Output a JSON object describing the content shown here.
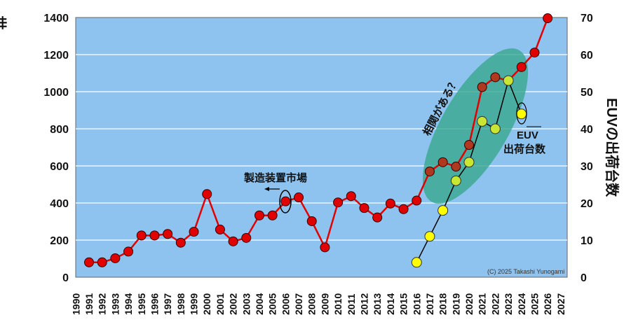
{
  "chart_data": {
    "type": "line",
    "title": "",
    "ylabel": "世界の半導体製造装置市場（億ドル）",
    "y2label": "EUVの出荷台数",
    "ylim": [
      0,
      1400
    ],
    "y2lim": [
      0,
      70
    ],
    "yticks": [
      "0",
      "200",
      "400",
      "600",
      "800",
      "1000",
      "1200",
      "1400"
    ],
    "y2ticks": [
      "0",
      "10",
      "20",
      "30",
      "40",
      "50",
      "60",
      "70"
    ],
    "xticks": [
      "1990",
      "1991",
      "1992",
      "1993",
      "1994",
      "1995",
      "1996",
      "1997",
      "1998",
      "1999",
      "2000",
      "2001",
      "2002",
      "2003",
      "2004",
      "2005",
      "2006",
      "2007",
      "2008",
      "2009",
      "2010",
      "2011",
      "2012",
      "2013",
      "2014",
      "2015",
      "2016",
      "2017",
      "2018",
      "2019",
      "2020",
      "2021",
      "2022",
      "2023",
      "2024",
      "2025",
      "2026",
      "2027"
    ],
    "grid": true,
    "series": [
      {
        "name": "製造装置市場",
        "axis": "left",
        "color": "#e00000",
        "x": [
          1991,
          1992,
          1993,
          1994,
          1995,
          1996,
          1997,
          1998,
          1999,
          2000,
          2001,
          2002,
          2003,
          2004,
          2005,
          2006,
          2007,
          2008,
          2009,
          2010,
          2011,
          2012,
          2013,
          2014,
          2015,
          2016,
          2017,
          2018,
          2019,
          2020,
          2021,
          2022,
          2023,
          2024,
          2025,
          2026
        ],
        "values": [
          80,
          80,
          102,
          138,
          225,
          225,
          233,
          186,
          245,
          448,
          257,
          193,
          212,
          333,
          333,
          409,
          430,
          302,
          161,
          403,
          437,
          373,
          322,
          397,
          367,
          413,
          570,
          620,
          596,
          713,
          1025,
          1078,
          1060,
          1133,
          1211,
          1396
        ]
      },
      {
        "name": "EUV出荷台数",
        "axis": "right",
        "color": "#ffff00",
        "x": [
          2016,
          2017,
          2018,
          2019,
          2020,
          2021,
          2022,
          2023,
          2024
        ],
        "values": [
          4,
          11,
          18,
          26,
          31,
          42,
          40,
          53,
          44
        ]
      }
    ],
    "annotations": {
      "market_label": "製造装置市場",
      "euv_label_1": "EUV",
      "euv_label_2": "出荷台数",
      "correlation": "相関がある？",
      "copyright": "(C) 2025 Takashi Yunogami"
    },
    "colors": {
      "plot_bg": "#8ec3f0",
      "ellipse": "#3aa88e",
      "market": "#e00000",
      "euv": "#ffff00"
    }
  }
}
